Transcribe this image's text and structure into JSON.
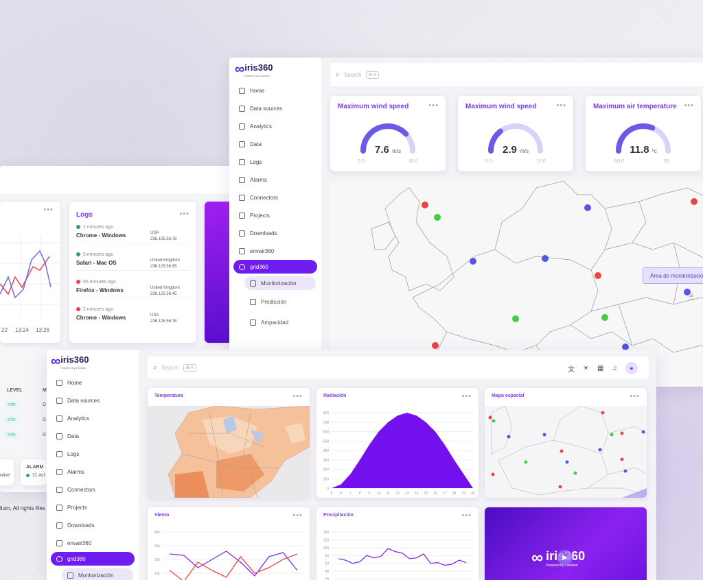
{
  "back_left": {
    "times": [
      "22",
      "13:24",
      "13:26"
    ],
    "logs_title": "Logs",
    "logs": [
      {
        "time": "2 minutes ago",
        "device": "Chrome - Windows",
        "country": "USA",
        "ip": "236.125.56.78",
        "color": "#2ca66a"
      },
      {
        "time": "5 minutes ago",
        "device": "Safari - Mac OS",
        "country": "United Kingdom",
        "ip": "236.125.56.95",
        "color": "#2ca66a"
      },
      {
        "time": "55 minutes ago",
        "device": "Firefox - Windows",
        "country": "United Kingdom",
        "ip": "236.125.56.45",
        "color": "#e44"
      },
      {
        "time": "2 minutes ago",
        "device": "Chrome - Windows",
        "country": "USA",
        "ip": "236.125.56.78",
        "color": "#e44"
      }
    ],
    "table_headers": [
      "LEVEL",
      "M"
    ],
    "info_label": "Info",
    "info_extra": "D",
    "alarm_label": "ALARM",
    "alarm_count": "11 act",
    "active_label": "otive",
    "footer": "lium, All rights Res"
  },
  "top_app": {
    "logo_text": "iris360",
    "logo_sub": "Powered by Libelium",
    "search_placeholder": "Search",
    "search_kbd": "⌘ K",
    "nav": [
      "Home",
      "Data sources",
      "Analytics",
      "Data",
      "Logs",
      "Alarms",
      "Connectors",
      "Projects",
      "Downloads",
      "envair360",
      "grid360"
    ],
    "sub_nav": [
      "Monitorización",
      "Predicción",
      "Ampacidad"
    ],
    "gauges": [
      {
        "title": "Maximum wind speed",
        "value": "7.6",
        "unit": "m/s",
        "min": "0.0",
        "max": "10.0",
        "fraction": 0.76
      },
      {
        "title": "Maximum wind speed",
        "value": "2.9",
        "unit": "m/s",
        "min": "0.0",
        "max": "10.0",
        "fraction": 0.29
      },
      {
        "title": "Maximum air temperature",
        "value": "11.8",
        "unit": "ºc",
        "min": "-50.0",
        "max": "50",
        "fraction": 0.62
      }
    ],
    "map_tooltip": "Área de monitorización"
  },
  "bottom_app": {
    "logo_text": "iris360",
    "logo_sub": "Powered by Libelium",
    "search_placeholder": "Search",
    "search_kbd": "⌘ K",
    "nav": [
      "Home",
      "Data sources",
      "Analytics",
      "Data",
      "Logs",
      "Alarms",
      "Connectors",
      "Projects",
      "Downloads",
      "envair360",
      "grid360"
    ],
    "sub_nav": [
      "Monitorización"
    ],
    "cards": {
      "temp": "Temperatura",
      "rad": "Radiación",
      "map": "Mapa espacial",
      "wind": "Viento",
      "prec": "Precipitación"
    },
    "video_logo": "iris360",
    "video_sub": "Powered by Libelium"
  },
  "chart_data": [
    {
      "type": "area",
      "title": "Radiación",
      "x": [
        5,
        6,
        7,
        8,
        9,
        10,
        11,
        12,
        13,
        14,
        15,
        16,
        17,
        18,
        19,
        20
      ],
      "y": [
        0,
        40,
        150,
        300,
        460,
        600,
        700,
        770,
        800,
        770,
        700,
        600,
        460,
        300,
        150,
        0
      ],
      "ylim": [
        0,
        800
      ],
      "yticks": [
        0,
        100,
        200,
        300,
        400,
        500,
        600,
        700,
        800
      ]
    },
    {
      "type": "line",
      "title": "Viento",
      "yticks": [
        "40k",
        "30k",
        "20k",
        "10k",
        "0k"
      ],
      "series": [
        {
          "values": [
            24,
            23,
            14,
            20,
            26,
            18,
            8,
            22,
            25,
            12
          ]
        },
        {
          "values": [
            12,
            4,
            18,
            12,
            7,
            22,
            10,
            14,
            20,
            24
          ]
        }
      ],
      "ylim": [
        0,
        40
      ]
    },
    {
      "type": "line",
      "title": "Precipitación",
      "yticks": [
        "140",
        "120",
        "100",
        "80",
        "60",
        "40",
        "20",
        "0"
      ],
      "series": [
        {
          "values": [
            72,
            68,
            60,
            64,
            80,
            74,
            78,
            98,
            90,
            86,
            72,
            74,
            84,
            60,
            62,
            55,
            58,
            68,
            62
          ]
        }
      ],
      "ylim": [
        0,
        140
      ]
    }
  ]
}
